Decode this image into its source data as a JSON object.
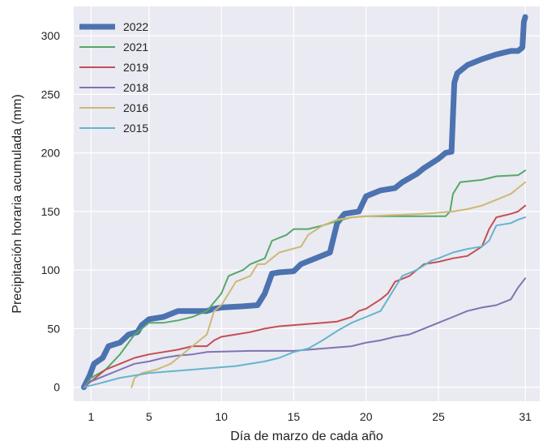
{
  "chart_data": {
    "type": "line",
    "title": "",
    "xlabel": "Día de marzo de cada año",
    "ylabel": "Precipitación horaria acumulada (mm)",
    "xlim": [
      -0.2,
      32.0
    ],
    "ylim": [
      -12,
      325
    ],
    "xticks": [
      1,
      5,
      10,
      15,
      20,
      25,
      31
    ],
    "yticks": [
      0,
      50,
      100,
      150,
      200,
      250,
      300
    ],
    "grid": true,
    "legend_position": "top-left",
    "colors": {
      "background": "#eaeaf2",
      "grid": "#ffffff"
    },
    "series": [
      {
        "name": "2022",
        "color": "#4c72b0",
        "width": 7,
        "points": [
          [
            0.5,
            0
          ],
          [
            0.9,
            10
          ],
          [
            1.2,
            20
          ],
          [
            1.8,
            25
          ],
          [
            2.2,
            35
          ],
          [
            3.0,
            38
          ],
          [
            3.6,
            45
          ],
          [
            4.2,
            47
          ],
          [
            4.5,
            53
          ],
          [
            5.0,
            58
          ],
          [
            6.0,
            60
          ],
          [
            7.0,
            65
          ],
          [
            9.0,
            65
          ],
          [
            9.5,
            67
          ],
          [
            10.0,
            68
          ],
          [
            11.5,
            69
          ],
          [
            12.5,
            70
          ],
          [
            13.0,
            80
          ],
          [
            13.5,
            97
          ],
          [
            14.0,
            98
          ],
          [
            15.0,
            99
          ],
          [
            15.5,
            105
          ],
          [
            16.5,
            110
          ],
          [
            17.5,
            115
          ],
          [
            18.0,
            140
          ],
          [
            18.5,
            148
          ],
          [
            19.5,
            150
          ],
          [
            20.0,
            163
          ],
          [
            21.0,
            168
          ],
          [
            22.0,
            170
          ],
          [
            22.5,
            175
          ],
          [
            23.5,
            182
          ],
          [
            24.0,
            187
          ],
          [
            25.0,
            195
          ],
          [
            25.5,
            200
          ],
          [
            25.9,
            201
          ],
          [
            26.1,
            260
          ],
          [
            26.3,
            268
          ],
          [
            27.0,
            275
          ],
          [
            28.0,
            280
          ],
          [
            29.0,
            284
          ],
          [
            30.0,
            287
          ],
          [
            30.5,
            287
          ],
          [
            30.8,
            290
          ],
          [
            30.9,
            312
          ],
          [
            31.0,
            316
          ]
        ]
      },
      {
        "name": "2021",
        "color": "#55a868",
        "width": 2,
        "points": [
          [
            0.5,
            0
          ],
          [
            1.0,
            8
          ],
          [
            2.0,
            15
          ],
          [
            3.0,
            28
          ],
          [
            4.0,
            45
          ],
          [
            5.0,
            55
          ],
          [
            6.0,
            55
          ],
          [
            7.0,
            57
          ],
          [
            8.0,
            60
          ],
          [
            9.0,
            65
          ],
          [
            10.0,
            80
          ],
          [
            10.5,
            95
          ],
          [
            11.5,
            100
          ],
          [
            12.0,
            105
          ],
          [
            13.0,
            110
          ],
          [
            13.5,
            125
          ],
          [
            14.5,
            130
          ],
          [
            15.0,
            135
          ],
          [
            16.0,
            135
          ],
          [
            17.0,
            138
          ],
          [
            18.0,
            142
          ],
          [
            19.0,
            145
          ],
          [
            20.0,
            146
          ],
          [
            22.0,
            146
          ],
          [
            25.5,
            146
          ],
          [
            25.8,
            150
          ],
          [
            26.0,
            165
          ],
          [
            26.5,
            175
          ],
          [
            28.0,
            177
          ],
          [
            29.0,
            180
          ],
          [
            30.5,
            181
          ],
          [
            31.0,
            185
          ]
        ]
      },
      {
        "name": "2019",
        "color": "#c44e52",
        "width": 2,
        "points": [
          [
            0.5,
            0
          ],
          [
            1.5,
            10
          ],
          [
            2.0,
            15
          ],
          [
            3.0,
            20
          ],
          [
            4.0,
            25
          ],
          [
            5.0,
            28
          ],
          [
            6.0,
            30
          ],
          [
            7.0,
            32
          ],
          [
            8.0,
            35
          ],
          [
            9.0,
            35
          ],
          [
            9.5,
            40
          ],
          [
            10.0,
            43
          ],
          [
            11.0,
            45
          ],
          [
            12.0,
            47
          ],
          [
            13.0,
            50
          ],
          [
            14.0,
            52
          ],
          [
            15.0,
            53
          ],
          [
            17.0,
            55
          ],
          [
            18.0,
            56
          ],
          [
            19.0,
            60
          ],
          [
            19.5,
            65
          ],
          [
            20.0,
            67
          ],
          [
            21.0,
            75
          ],
          [
            21.5,
            80
          ],
          [
            22.0,
            90
          ],
          [
            23.0,
            95
          ],
          [
            23.5,
            100
          ],
          [
            24.0,
            105
          ],
          [
            25.0,
            107
          ],
          [
            26.0,
            110
          ],
          [
            27.0,
            112
          ],
          [
            28.0,
            120
          ],
          [
            28.5,
            135
          ],
          [
            29.0,
            145
          ],
          [
            30.0,
            148
          ],
          [
            30.5,
            150
          ],
          [
            31.0,
            155
          ]
        ]
      },
      {
        "name": "2018",
        "color": "#8172b3",
        "width": 2,
        "points": [
          [
            0.5,
            0
          ],
          [
            1.0,
            5
          ],
          [
            2.0,
            10
          ],
          [
            3.0,
            15
          ],
          [
            4.0,
            20
          ],
          [
            5.0,
            22
          ],
          [
            6.0,
            25
          ],
          [
            7.0,
            27
          ],
          [
            8.0,
            28
          ],
          [
            9.0,
            30
          ],
          [
            12.0,
            31
          ],
          [
            15.0,
            31
          ],
          [
            17.0,
            33
          ],
          [
            19.0,
            35
          ],
          [
            20.0,
            38
          ],
          [
            21.0,
            40
          ],
          [
            22.0,
            43
          ],
          [
            23.0,
            45
          ],
          [
            24.0,
            50
          ],
          [
            25.0,
            55
          ],
          [
            26.0,
            60
          ],
          [
            27.0,
            65
          ],
          [
            28.0,
            68
          ],
          [
            29.0,
            70
          ],
          [
            30.0,
            75
          ],
          [
            30.5,
            85
          ],
          [
            31.0,
            93
          ]
        ]
      },
      {
        "name": "2016",
        "color": "#ccb974",
        "width": 2,
        "points": [
          [
            3.8,
            0
          ],
          [
            4.0,
            8
          ],
          [
            4.5,
            12
          ],
          [
            5.5,
            15
          ],
          [
            6.5,
            20
          ],
          [
            7.0,
            25
          ],
          [
            8.0,
            35
          ],
          [
            9.0,
            45
          ],
          [
            9.5,
            65
          ],
          [
            10.0,
            70
          ],
          [
            10.5,
            80
          ],
          [
            11.0,
            90
          ],
          [
            12.0,
            95
          ],
          [
            12.5,
            105
          ],
          [
            13.0,
            105
          ],
          [
            13.5,
            110
          ],
          [
            14.0,
            115
          ],
          [
            15.5,
            120
          ],
          [
            16.0,
            130
          ],
          [
            17.0,
            138
          ],
          [
            18.0,
            143
          ],
          [
            19.0,
            145
          ],
          [
            20.0,
            146
          ],
          [
            22.0,
            147
          ],
          [
            24.0,
            148
          ],
          [
            26.0,
            150
          ],
          [
            27.0,
            152
          ],
          [
            28.0,
            155
          ],
          [
            29.0,
            160
          ],
          [
            30.0,
            165
          ],
          [
            30.5,
            170
          ],
          [
            31.0,
            175
          ]
        ]
      },
      {
        "name": "2015",
        "color": "#64b5cd",
        "width": 2,
        "points": [
          [
            0.5,
            0
          ],
          [
            1.5,
            3
          ],
          [
            3.0,
            8
          ],
          [
            5.0,
            12
          ],
          [
            8.0,
            15
          ],
          [
            11.0,
            18
          ],
          [
            13.0,
            22
          ],
          [
            14.0,
            25
          ],
          [
            15.0,
            30
          ],
          [
            16.0,
            33
          ],
          [
            17.0,
            40
          ],
          [
            18.0,
            48
          ],
          [
            19.0,
            55
          ],
          [
            20.0,
            60
          ],
          [
            21.0,
            65
          ],
          [
            21.5,
            75
          ],
          [
            22.5,
            95
          ],
          [
            23.5,
            100
          ],
          [
            24.5,
            108
          ],
          [
            25.0,
            110
          ],
          [
            26.0,
            115
          ],
          [
            27.0,
            118
          ],
          [
            28.0,
            120
          ],
          [
            28.5,
            125
          ],
          [
            29.0,
            138
          ],
          [
            30.0,
            140
          ],
          [
            30.5,
            143
          ],
          [
            31.0,
            145
          ]
        ]
      }
    ]
  }
}
